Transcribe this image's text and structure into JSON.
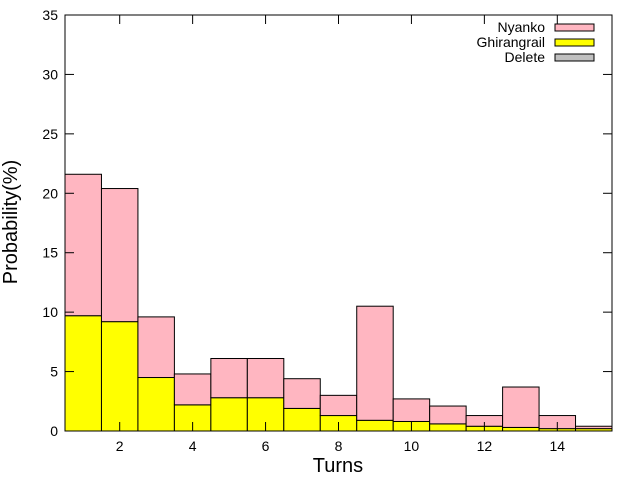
{
  "chart_data": {
    "type": "bar",
    "stacked": true,
    "xlabel": "Turns",
    "ylabel": "Probability(%)",
    "xlim": [
      0.5,
      15.5
    ],
    "ylim": [
      0,
      35
    ],
    "x": [
      1,
      2,
      3,
      4,
      5,
      6,
      7,
      8,
      9,
      10,
      11,
      12,
      13,
      14,
      15
    ],
    "xticks": [
      2,
      4,
      6,
      8,
      10,
      12,
      14
    ],
    "yticks": [
      0,
      5,
      10,
      15,
      20,
      25,
      30,
      35
    ],
    "grid": false,
    "legend_position": "top-right",
    "series": [
      {
        "name": "Nyanko",
        "color": "#ffb6c1",
        "values": [
          11.9,
          11.2,
          5.1,
          2.6,
          3.3,
          3.3,
          2.5,
          1.7,
          9.6,
          1.9,
          1.5,
          0.9,
          3.4,
          1.1,
          0.2
        ]
      },
      {
        "name": "Ghirangrail",
        "color": "#ffff00",
        "values": [
          9.7,
          9.2,
          4.5,
          2.2,
          2.8,
          2.8,
          1.9,
          1.3,
          0.9,
          0.8,
          0.6,
          0.4,
          0.3,
          0.2,
          0.2
        ]
      },
      {
        "name": "Delete",
        "color": "#c0c0c0",
        "values": [
          0,
          0,
          0,
          0,
          0,
          0,
          0,
          0,
          0,
          0,
          0,
          0,
          0,
          0,
          0
        ]
      }
    ]
  }
}
